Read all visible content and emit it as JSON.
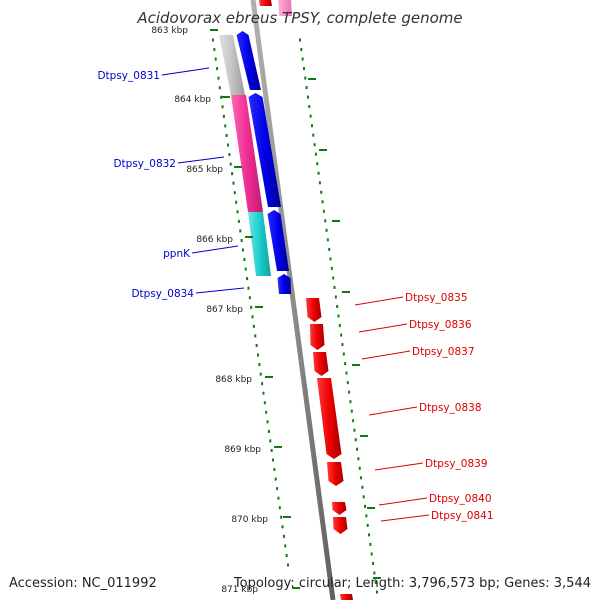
{
  "title": "Acidovorax ebreus TPSY, complete genome",
  "accession": "Accession: NC_011992",
  "summary": "Topology: circular; Length: 3,796,573 bp; Genes: 3,544",
  "ticks": [
    "863 kbp",
    "864 kbp",
    "865 kbp",
    "866 kbp",
    "867 kbp",
    "868 kbp",
    "869 kbp",
    "870 kbp",
    "871 kbp"
  ],
  "genes_minus": [
    "Dtpsy_0831",
    "Dtpsy_0832",
    "ppnK",
    "Dtpsy_0834"
  ],
  "genes_plus": [
    "Dtpsy_0835",
    "Dtpsy_0836",
    "Dtpsy_0837",
    "Dtpsy_0838",
    "Dtpsy_0839",
    "Dtpsy_0840",
    "Dtpsy_0841"
  ],
  "colors": {
    "minus_label": "#0000cc",
    "plus_label": "#dd0000",
    "backbone": "#8c8c8c",
    "gene_blue": "#0000e6",
    "gene_red": "#ee0000",
    "feat_gray": "#c0c0c0",
    "feat_pink": "#ee2f95",
    "feat_cyan": "#1ecece",
    "tick_green": "#107a10"
  }
}
